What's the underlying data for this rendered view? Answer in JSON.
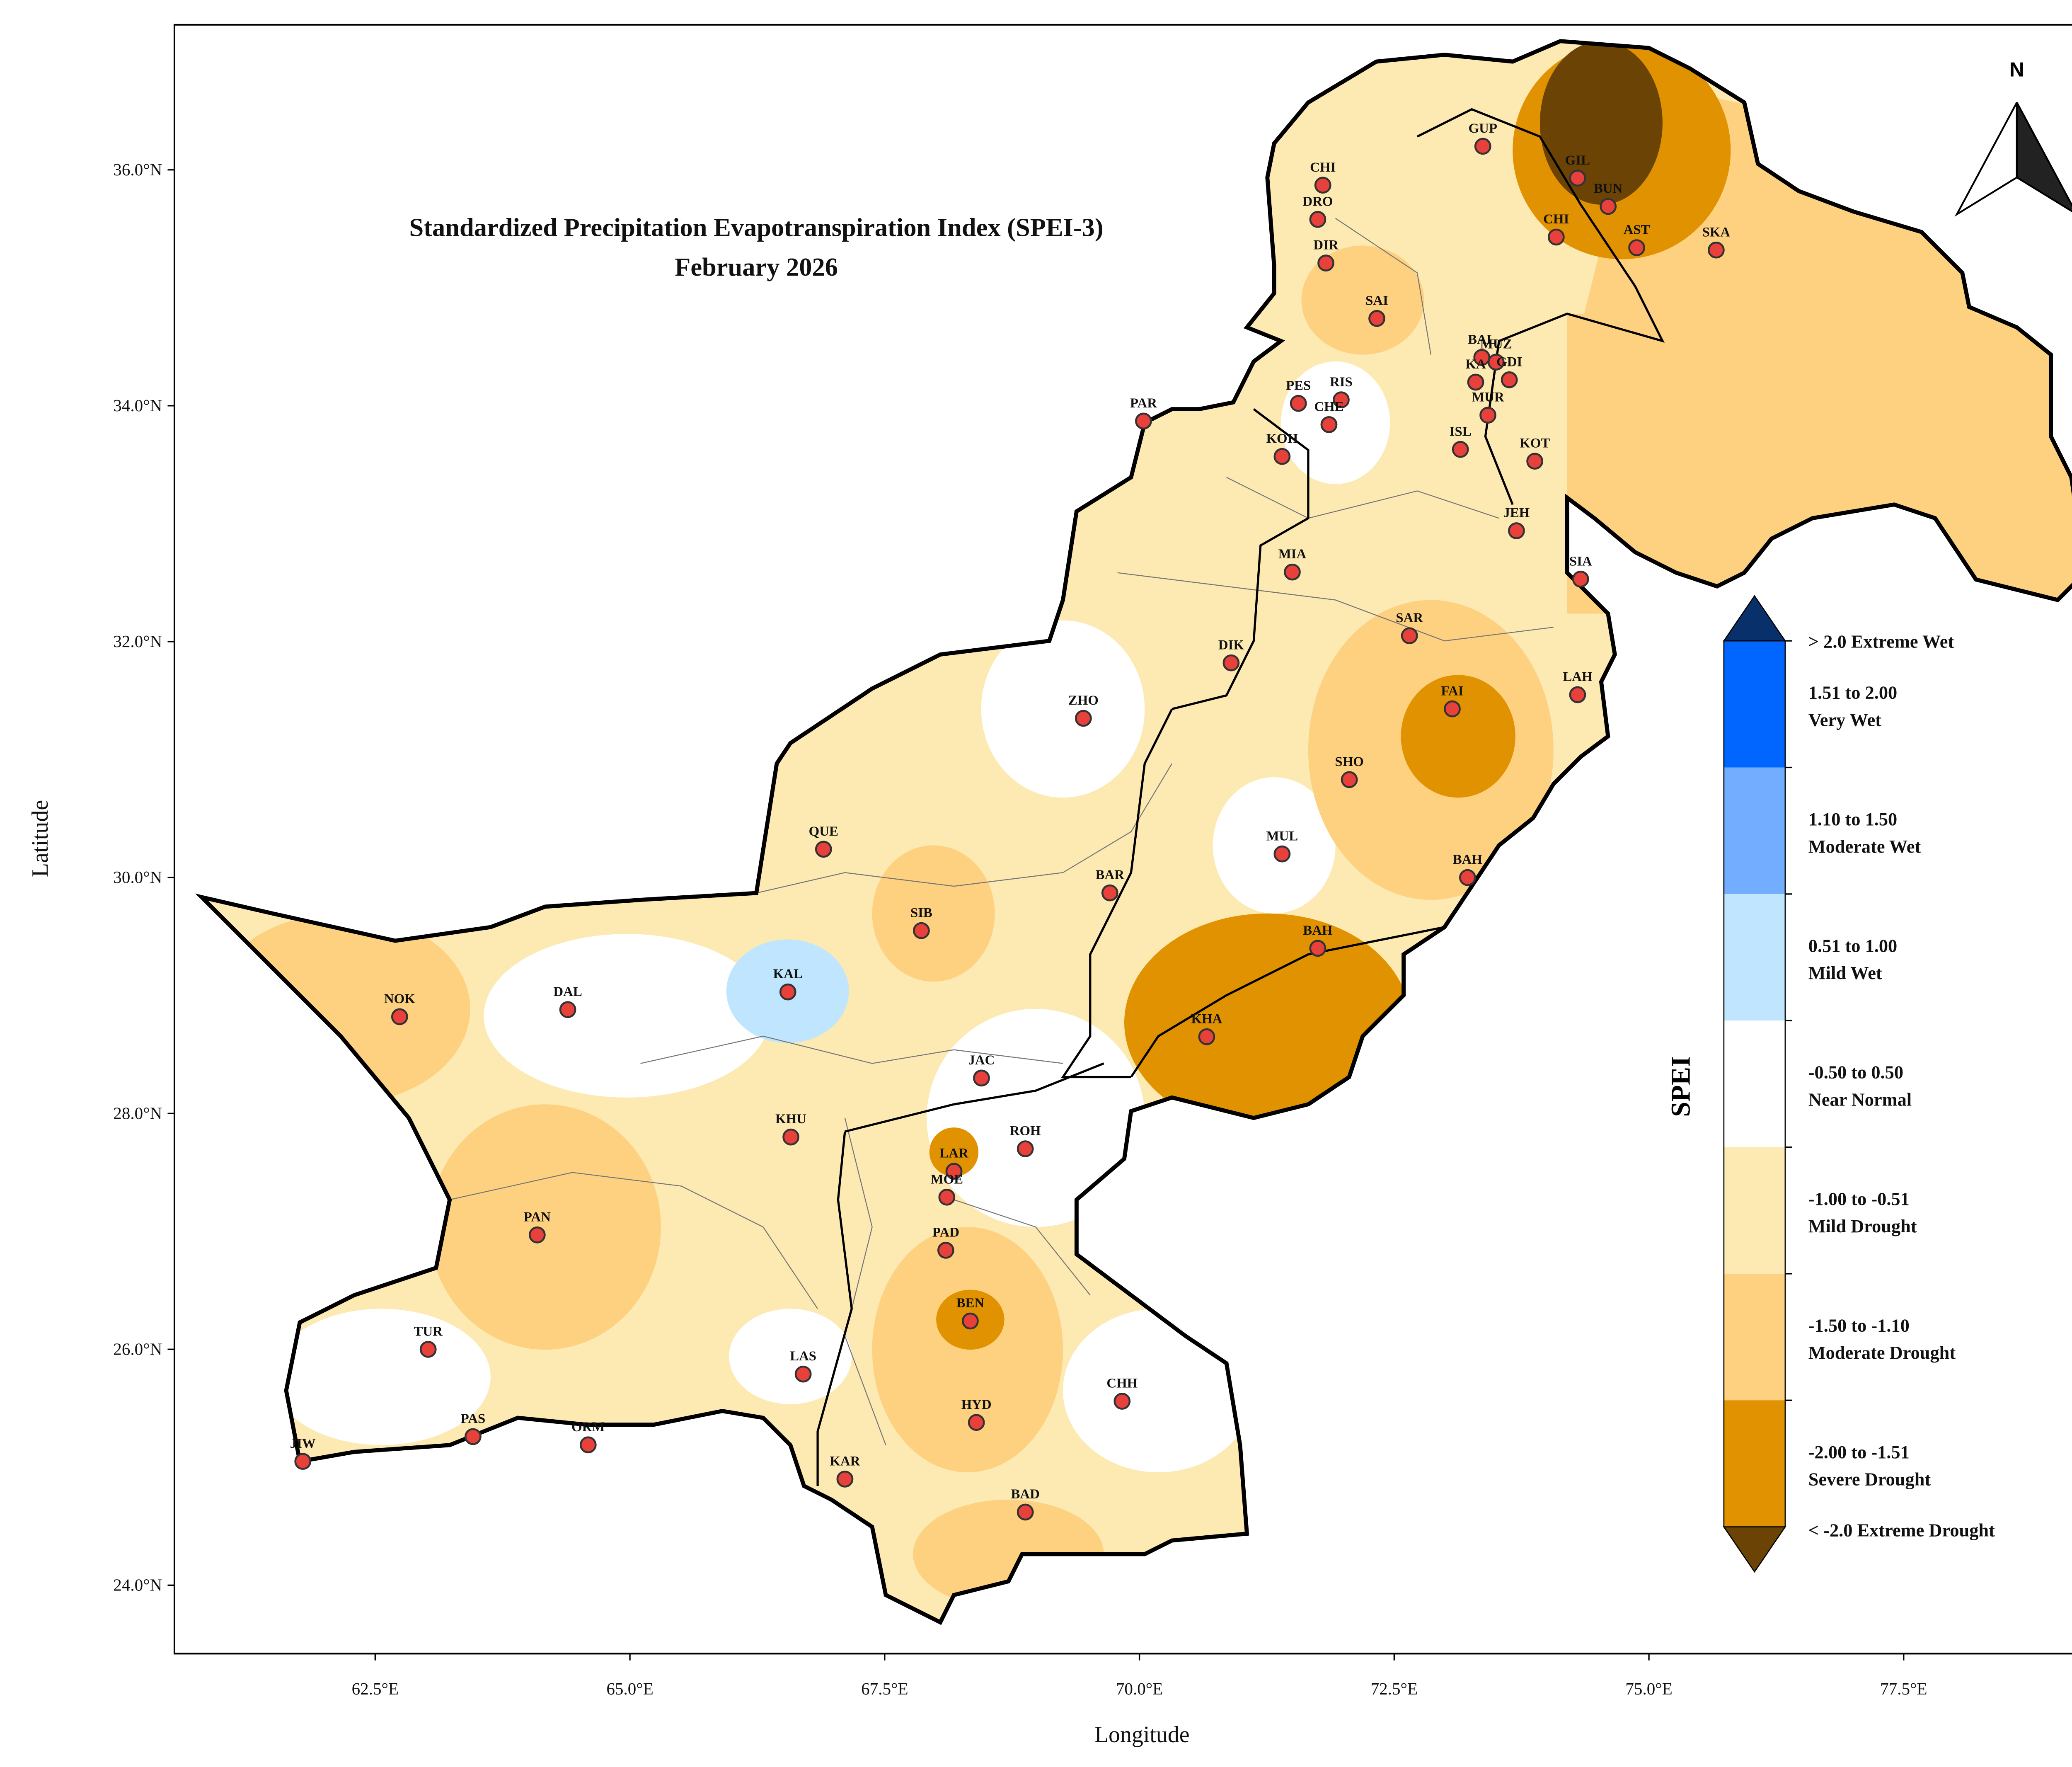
{
  "title": "Standardized Precipitation Evapotranspiration Index (SPEI-3)",
  "subtitle": "February 2026",
  "x_axis": {
    "label": "Longitude",
    "lim": [
      60.53,
      79.52
    ],
    "ticks": [
      {
        "value": 62.5,
        "label": "62.5°E"
      },
      {
        "value": 65,
        "label": "65.0°E"
      },
      {
        "value": 67.5,
        "label": "67.5°E"
      },
      {
        "value": 70,
        "label": "70.0°E"
      },
      {
        "value": 72.5,
        "label": "72.5°E"
      },
      {
        "value": 75,
        "label": "75.0°E"
      },
      {
        "value": 77.5,
        "label": "77.5°E"
      }
    ]
  },
  "y_axis": {
    "label": "Latitude",
    "lim": [
      23.42,
      37.23
    ],
    "ticks": [
      {
        "value": 24,
        "label": "24.0°N"
      },
      {
        "value": 26,
        "label": "26.0°N"
      },
      {
        "value": 28,
        "label": "28.0°N"
      },
      {
        "value": 30,
        "label": "30.0°N"
      },
      {
        "value": 32,
        "label": "32.0°N"
      },
      {
        "value": 34,
        "label": "34.0°N"
      },
      {
        "value": 36,
        "label": "36.0°N"
      }
    ]
  },
  "north": "N",
  "legend": {
    "title": "SPEI",
    "items": [
      {
        "label": "> 2.0 Extreme Wet",
        "color": "#08306b"
      },
      {
        "range": "1.51 to 2.00",
        "name": "Very Wet",
        "color": "#0066ff"
      },
      {
        "range": "1.10 to 1.50",
        "name": "Moderate Wet",
        "color": "#73adff"
      },
      {
        "range": "0.51 to 1.00",
        "name": "Mild Wet",
        "color": "#bfe6fe"
      },
      {
        "range": "-0.50 to 0.50",
        "name": "Near Normal",
        "color": "#ffffff"
      },
      {
        "range": "-1.00 to -0.51",
        "name": "Mild Drought",
        "color": "#fde9b2"
      },
      {
        "range": "-1.50 to -1.10",
        "name": "Moderate Drought",
        "color": "#fdd17f"
      },
      {
        "range": "-2.00 to -1.51",
        "name": "Severe Drought",
        "color": "#e09200"
      },
      {
        "label": "< -2.0 Extreme Drought",
        "color": "#6b4405"
      }
    ]
  },
  "stations": [
    {
      "name": "CHI",
      "lon": 71.8,
      "lat": 35.87
    },
    {
      "name": "DRO",
      "lon": 71.75,
      "lat": 35.58
    },
    {
      "name": "DIR",
      "lon": 71.83,
      "lat": 35.21
    },
    {
      "name": "GUP",
      "lon": 73.37,
      "lat": 36.2
    },
    {
      "name": "GIL",
      "lon": 74.3,
      "lat": 35.93
    },
    {
      "name": "BUN",
      "lon": 74.6,
      "lat": 35.69
    },
    {
      "name": "CHI",
      "lon": 74.09,
      "lat": 35.43
    },
    {
      "name": "AST",
      "lon": 74.88,
      "lat": 35.34
    },
    {
      "name": "SKA",
      "lon": 75.66,
      "lat": 35.32
    },
    {
      "name": "SAI",
      "lon": 72.33,
      "lat": 34.74
    },
    {
      "name": "BAL",
      "lon": 73.36,
      "lat": 34.41
    },
    {
      "name": "MUZ",
      "lon": 73.5,
      "lat": 34.37
    },
    {
      "name": "KA",
      "lon": 73.3,
      "lat": 34.2
    },
    {
      "name": "GDI",
      "lon": 73.63,
      "lat": 34.22
    },
    {
      "name": "MUR",
      "lon": 73.42,
      "lat": 33.92
    },
    {
      "name": "ISL",
      "lon": 73.15,
      "lat": 33.63
    },
    {
      "name": "PES",
      "lon": 71.56,
      "lat": 34.02
    },
    {
      "name": "RIS",
      "lon": 71.98,
      "lat": 34.05
    },
    {
      "name": "CHE",
      "lon": 71.86,
      "lat": 33.84
    },
    {
      "name": "KOH",
      "lon": 71.4,
      "lat": 33.57
    },
    {
      "name": "PAR",
      "lon": 70.04,
      "lat": 33.87
    },
    {
      "name": "KOT",
      "lon": 73.88,
      "lat": 33.53
    },
    {
      "name": "JEH",
      "lon": 73.7,
      "lat": 32.94
    },
    {
      "name": "SIA",
      "lon": 74.33,
      "lat": 32.53
    },
    {
      "name": "MIA",
      "lon": 71.5,
      "lat": 32.59
    },
    {
      "name": "SAR",
      "lon": 72.65,
      "lat": 32.05
    },
    {
      "name": "DIK",
      "lon": 70.9,
      "lat": 31.82
    },
    {
      "name": "FAI",
      "lon": 73.07,
      "lat": 31.43
    },
    {
      "name": "LAH",
      "lon": 74.3,
      "lat": 31.55
    },
    {
      "name": "ZHO",
      "lon": 69.45,
      "lat": 31.35
    },
    {
      "name": "SHO",
      "lon": 72.06,
      "lat": 30.83
    },
    {
      "name": "MUL",
      "lon": 71.4,
      "lat": 30.2
    },
    {
      "name": "BAH",
      "lon": 73.22,
      "lat": 30.0
    },
    {
      "name": "QUE",
      "lon": 66.9,
      "lat": 30.24
    },
    {
      "name": "BAR",
      "lon": 69.71,
      "lat": 29.87
    },
    {
      "name": "SIB",
      "lon": 67.86,
      "lat": 29.55
    },
    {
      "name": "BAH",
      "lon": 71.75,
      "lat": 29.4
    },
    {
      "name": "KAL",
      "lon": 66.55,
      "lat": 29.03
    },
    {
      "name": "NOK",
      "lon": 62.74,
      "lat": 28.82
    },
    {
      "name": "DAL",
      "lon": 64.39,
      "lat": 28.88
    },
    {
      "name": "KHA",
      "lon": 70.66,
      "lat": 28.65
    },
    {
      "name": "JAC",
      "lon": 68.45,
      "lat": 28.3
    },
    {
      "name": "KHU",
      "lon": 66.58,
      "lat": 27.8
    },
    {
      "name": "ROH",
      "lon": 68.88,
      "lat": 27.7
    },
    {
      "name": "LAR",
      "lon": 68.18,
      "lat": 27.51
    },
    {
      "name": "MOE",
      "lon": 68.11,
      "lat": 27.29
    },
    {
      "name": "PAN",
      "lon": 64.09,
      "lat": 26.97
    },
    {
      "name": "PAD",
      "lon": 68.1,
      "lat": 26.84
    },
    {
      "name": "BEN",
      "lon": 68.34,
      "lat": 26.24
    },
    {
      "name": "TUR",
      "lon": 63.02,
      "lat": 26.0
    },
    {
      "name": "LAS",
      "lon": 66.7,
      "lat": 25.79
    },
    {
      "name": "CHH",
      "lon": 69.83,
      "lat": 25.56
    },
    {
      "name": "HYD",
      "lon": 68.4,
      "lat": 25.38
    },
    {
      "name": "PAS",
      "lon": 63.46,
      "lat": 25.26
    },
    {
      "name": "ORM",
      "lon": 64.59,
      "lat": 25.19
    },
    {
      "name": "JIW",
      "lon": 61.79,
      "lat": 25.05
    },
    {
      "name": "KAR",
      "lon": 67.11,
      "lat": 24.9
    },
    {
      "name": "BAD",
      "lon": 68.88,
      "lat": 24.62
    }
  ]
}
